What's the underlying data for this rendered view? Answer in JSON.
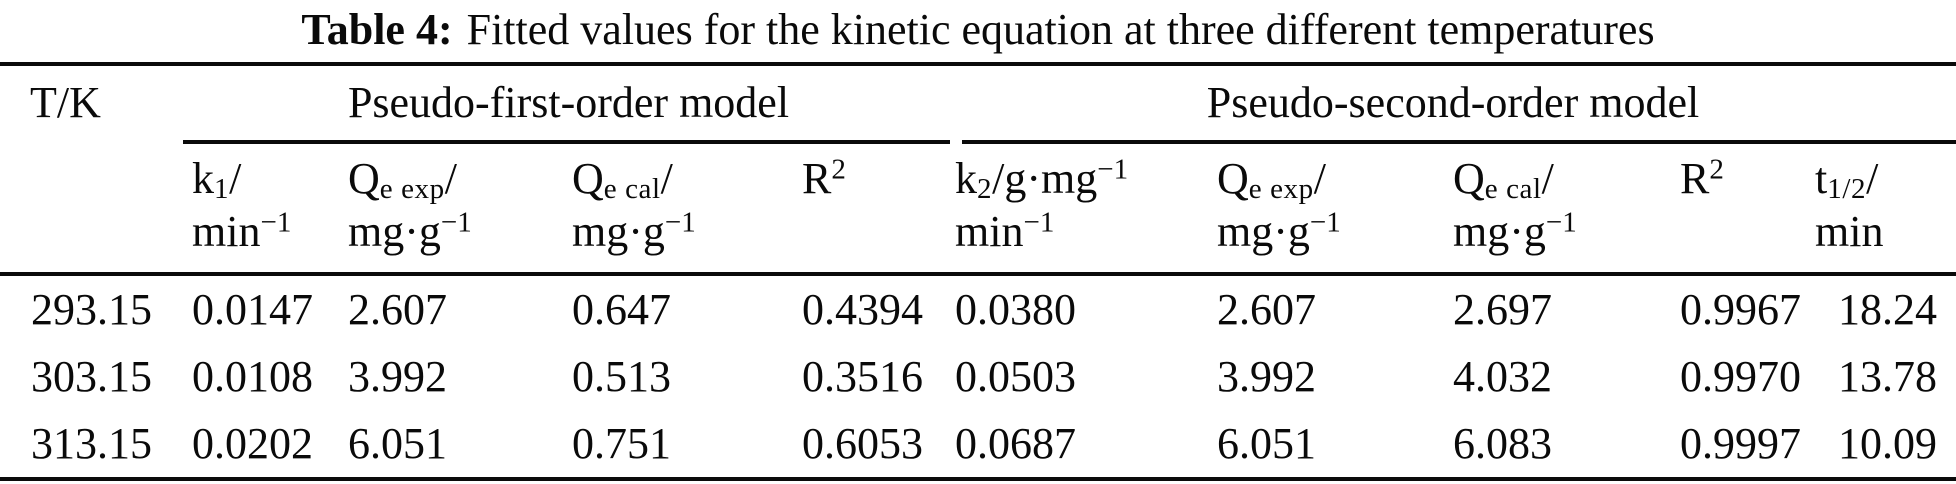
{
  "title": {
    "label": "Table 4:",
    "text": "Fitted values for the kinetic equation at three different temperatures"
  },
  "corner_label": "T/K",
  "groups": {
    "first": "Pseudo-first-order model",
    "second": "Pseudo-second-order model"
  },
  "columns": [
    {
      "name": "k1",
      "line1": [
        [
          "t",
          "k"
        ],
        [
          "sub",
          "1"
        ],
        [
          "t",
          "/"
        ]
      ],
      "line2": [
        [
          "t",
          "min"
        ],
        [
          "sup",
          "−1"
        ]
      ]
    },
    {
      "name": "qe-exp-1",
      "line1": [
        [
          "t",
          "Q"
        ],
        [
          "sub",
          "e exp"
        ],
        [
          "t",
          "/"
        ]
      ],
      "line2": [
        [
          "t",
          "mg·g"
        ],
        [
          "sup",
          "−1"
        ]
      ]
    },
    {
      "name": "qe-cal-1",
      "line1": [
        [
          "t",
          "Q"
        ],
        [
          "sub",
          "e cal"
        ],
        [
          "t",
          "/"
        ]
      ],
      "line2": [
        [
          "t",
          "mg·g"
        ],
        [
          "sup",
          "−1"
        ]
      ]
    },
    {
      "name": "r2-1",
      "line1": [
        [
          "t",
          "R"
        ],
        [
          "sup",
          "2"
        ]
      ],
      "line2": []
    },
    {
      "name": "k2",
      "line1": [
        [
          "t",
          "k"
        ],
        [
          "sub",
          "2"
        ],
        [
          "t",
          "/g·mg"
        ],
        [
          "sup",
          "−1"
        ]
      ],
      "line2": [
        [
          "t",
          "min"
        ],
        [
          "sup",
          "−1"
        ]
      ]
    },
    {
      "name": "qe-exp-2",
      "line1": [
        [
          "t",
          "Q"
        ],
        [
          "sub",
          "e exp"
        ],
        [
          "t",
          "/"
        ]
      ],
      "line2": [
        [
          "t",
          "mg·g"
        ],
        [
          "sup",
          "−1"
        ]
      ]
    },
    {
      "name": "qe-cal-2",
      "line1": [
        [
          "t",
          "Q"
        ],
        [
          "sub",
          "e cal"
        ],
        [
          "t",
          "/"
        ]
      ],
      "line2": [
        [
          "t",
          "mg·g"
        ],
        [
          "sup",
          "−1"
        ]
      ]
    },
    {
      "name": "r2-2",
      "line1": [
        [
          "t",
          "R"
        ],
        [
          "sup",
          "2"
        ]
      ],
      "line2": []
    },
    {
      "name": "t-half",
      "line1": [
        [
          "t",
          "t"
        ],
        [
          "sub",
          "1/2"
        ],
        [
          "t",
          "/"
        ]
      ],
      "line2": [
        [
          "t",
          "min"
        ]
      ]
    }
  ],
  "rows": [
    {
      "cells": [
        "293.15",
        "0.0147",
        "2.607",
        "0.647",
        "0.4394",
        "0.0380",
        "2.607",
        "2.697",
        "0.9967",
        "18.24"
      ]
    },
    {
      "cells": [
        "303.15",
        "0.0108",
        "3.992",
        "0.513",
        "0.3516",
        "0.0503",
        "3.992",
        "4.032",
        "0.9970",
        "13.78"
      ]
    },
    {
      "cells": [
        "313.15",
        "0.0202",
        "6.051",
        "0.751",
        "0.6053",
        "0.0687",
        "6.051",
        "6.083",
        "0.9997",
        "10.09"
      ]
    }
  ],
  "colors": {
    "text": "#0a0a0a",
    "background": "#ffffff",
    "rule": "#0a0a0a"
  }
}
